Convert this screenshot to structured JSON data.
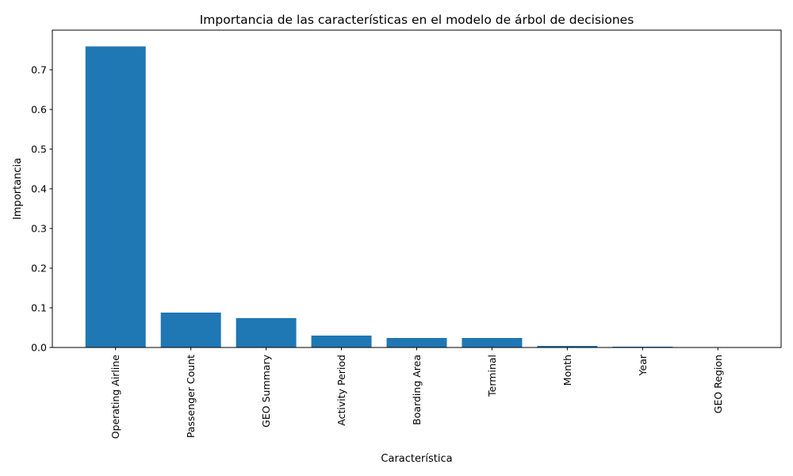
{
  "chart_data": {
    "type": "bar",
    "title": "Importancia de las características en el modelo de árbol de decisiones",
    "xlabel": "Característica",
    "ylabel": "Importancia",
    "categories": [
      "Operating Airline",
      "Passenger Count",
      "GEO Summary",
      "Activity Period",
      "Boarding Area",
      "Terminal",
      "Month",
      "Year",
      "GEO Region"
    ],
    "values": [
      0.759,
      0.088,
      0.074,
      0.03,
      0.024,
      0.024,
      0.004,
      0.002,
      0.001
    ],
    "ylim": [
      0,
      0.8
    ],
    "yticks": [
      0.0,
      0.1,
      0.2,
      0.3,
      0.4,
      0.5,
      0.6,
      0.7
    ],
    "ytick_labels": [
      "0.0",
      "0.1",
      "0.2",
      "0.3",
      "0.4",
      "0.5",
      "0.6",
      "0.7"
    ],
    "bar_color": "#1f77b4",
    "grid": false,
    "legend": "none",
    "xtick_rotation": "vertical"
  }
}
